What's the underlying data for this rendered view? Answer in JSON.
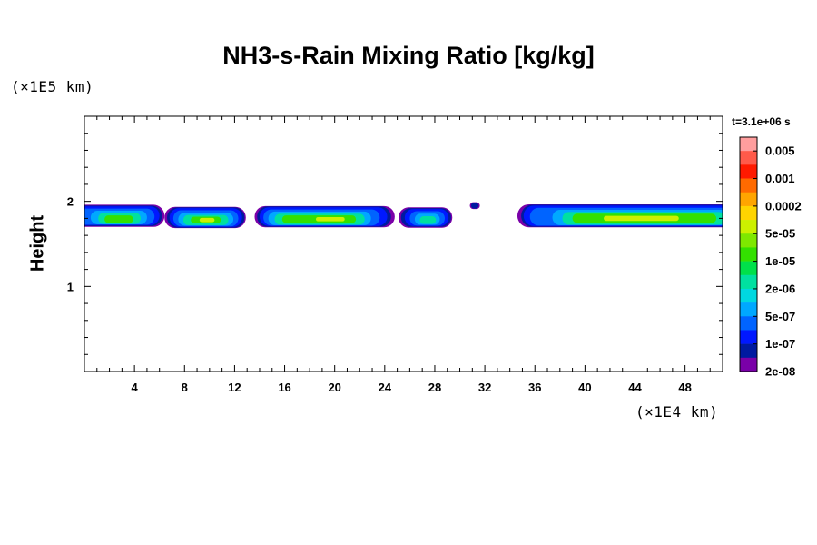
{
  "chart_data": {
    "type": "heatmap",
    "title": "NH3-s-Rain Mixing Ratio [kg/kg]",
    "ylabel": "Height",
    "xlabel": "",
    "x_unit_label": "(×1E4 km)",
    "y_unit_label": "(×1E5 km)",
    "xlim": [
      0,
      51
    ],
    "ylim": [
      0,
      3
    ],
    "x_ticks": [
      4,
      8,
      12,
      16,
      20,
      24,
      28,
      32,
      36,
      40,
      44,
      48
    ],
    "y_ticks": [
      1,
      2
    ],
    "time_label": "t=3.1e+06 s",
    "colorbar": {
      "labels": [
        "0.005",
        "0.001",
        "0.0002",
        "5e-05",
        "1e-05",
        "2e-06",
        "5e-07",
        "1e-07",
        "2e-08"
      ],
      "colors": [
        "#ff9e9e",
        "#ff5a4a",
        "#ff1a00",
        "#ff6a00",
        "#ffa500",
        "#ffd400",
        "#ccf000",
        "#7ee800",
        "#33e000",
        "#00e04a",
        "#00e0a0",
        "#00d8e0",
        "#00a8ff",
        "#0064ff",
        "#0018ff",
        "#001aa0",
        "#7a00a8"
      ]
    },
    "layers": [
      {
        "level": "2e-08",
        "color": "#7a00a8",
        "blobs": [
          {
            "x0": -1,
            "x1": 6.4,
            "yc": 1.83,
            "h": 0.26
          },
          {
            "x0": 6.4,
            "x1": 12.9,
            "yc": 1.81,
            "h": 0.25
          },
          {
            "x0": 13.6,
            "x1": 24.8,
            "yc": 1.82,
            "h": 0.25
          },
          {
            "x0": 25.1,
            "x1": 29.4,
            "yc": 1.81,
            "h": 0.24
          },
          {
            "x0": 30.8,
            "x1": 31.6,
            "yc": 1.95,
            "h": 0.08
          },
          {
            "x0": 34.6,
            "x1": 52,
            "yc": 1.83,
            "h": 0.27
          }
        ]
      },
      {
        "level": "1e-07",
        "color": "#001aa0",
        "blobs": [
          {
            "x0": -1,
            "x1": 6.2,
            "yc": 1.83,
            "h": 0.24
          },
          {
            "x0": 6.6,
            "x1": 12.8,
            "yc": 1.81,
            "h": 0.24
          },
          {
            "x0": 13.8,
            "x1": 24.5,
            "yc": 1.82,
            "h": 0.24
          },
          {
            "x0": 25.3,
            "x1": 29.3,
            "yc": 1.81,
            "h": 0.22
          },
          {
            "x0": 30.9,
            "x1": 31.5,
            "yc": 1.95,
            "h": 0.07
          },
          {
            "x0": 34.9,
            "x1": 52,
            "yc": 1.83,
            "h": 0.26
          }
        ]
      },
      {
        "level": "1e-07",
        "color": "#0018ff",
        "blobs": [
          {
            "x0": -1,
            "x1": 6.0,
            "yc": 1.83,
            "h": 0.22
          },
          {
            "x0": 6.8,
            "x1": 12.6,
            "yc": 1.81,
            "h": 0.22
          },
          {
            "x0": 14.0,
            "x1": 24.2,
            "yc": 1.82,
            "h": 0.22
          },
          {
            "x0": 25.6,
            "x1": 29.1,
            "yc": 1.81,
            "h": 0.2
          },
          {
            "x0": 35.1,
            "x1": 52,
            "yc": 1.83,
            "h": 0.24
          }
        ]
      },
      {
        "level": "1e-07",
        "color": "#0064ff",
        "blobs": [
          {
            "x0": -1,
            "x1": 5.6,
            "yc": 1.82,
            "h": 0.19
          },
          {
            "x0": 7.1,
            "x1": 12.3,
            "yc": 1.8,
            "h": 0.19
          },
          {
            "x0": 14.3,
            "x1": 23.6,
            "yc": 1.81,
            "h": 0.19
          },
          {
            "x0": 26.0,
            "x1": 28.8,
            "yc": 1.8,
            "h": 0.17
          },
          {
            "x0": 35.6,
            "x1": 52,
            "yc": 1.82,
            "h": 0.21
          }
        ]
      },
      {
        "level": "5e-07",
        "color": "#00a8ff",
        "blobs": [
          {
            "x0": 0.5,
            "x1": 5.0,
            "yc": 1.81,
            "h": 0.16
          },
          {
            "x0": 7.5,
            "x1": 11.9,
            "yc": 1.79,
            "h": 0.15
          },
          {
            "x0": 14.7,
            "x1": 22.9,
            "yc": 1.8,
            "h": 0.16
          },
          {
            "x0": 26.4,
            "x1": 28.4,
            "yc": 1.79,
            "h": 0.13
          },
          {
            "x0": 37.4,
            "x1": 51.5,
            "yc": 1.81,
            "h": 0.18
          }
        ]
      },
      {
        "level": "2e-06",
        "color": "#00e0a0",
        "blobs": [
          {
            "x0": 1.1,
            "x1": 4.5,
            "yc": 1.8,
            "h": 0.13
          },
          {
            "x0": 7.9,
            "x1": 11.5,
            "yc": 1.78,
            "h": 0.12
          },
          {
            "x0": 15.2,
            "x1": 22.4,
            "yc": 1.79,
            "h": 0.13
          },
          {
            "x0": 26.8,
            "x1": 28.1,
            "yc": 1.78,
            "h": 0.09
          },
          {
            "x0": 38.2,
            "x1": 51.2,
            "yc": 1.8,
            "h": 0.15
          }
        ]
      },
      {
        "level": "1e-05",
        "color": "#33e000",
        "blobs": [
          {
            "x0": 1.6,
            "x1": 3.9,
            "yc": 1.79,
            "h": 0.09
          },
          {
            "x0": 8.5,
            "x1": 10.9,
            "yc": 1.78,
            "h": 0.08
          },
          {
            "x0": 15.8,
            "x1": 21.7,
            "yc": 1.79,
            "h": 0.09
          },
          {
            "x0": 39.0,
            "x1": 50.5,
            "yc": 1.8,
            "h": 0.11
          }
        ]
      },
      {
        "level": "5e-05",
        "color": "#ccf000",
        "blobs": [
          {
            "x0": 9.2,
            "x1": 10.4,
            "yc": 1.78,
            "h": 0.05
          },
          {
            "x0": 18.5,
            "x1": 20.8,
            "yc": 1.79,
            "h": 0.05
          },
          {
            "x0": 41.5,
            "x1": 47.5,
            "yc": 1.8,
            "h": 0.06
          }
        ]
      }
    ]
  }
}
